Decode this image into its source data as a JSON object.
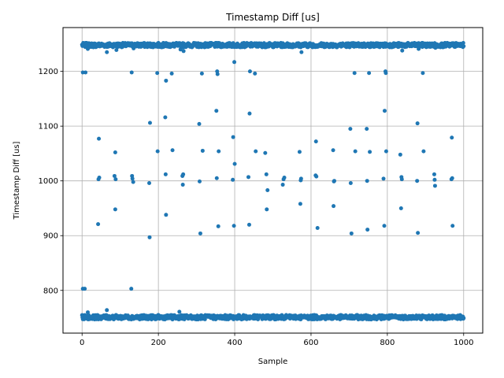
{
  "chart_data": {
    "type": "scatter",
    "title": "Timestamp Diff [us]",
    "xlabel": "Sample",
    "ylabel": "Timestamp Diff [us]",
    "xlim": [
      -50,
      1050
    ],
    "ylim": [
      722,
      1280
    ],
    "xticks": [
      0,
      200,
      400,
      600,
      800,
      1000
    ],
    "yticks": [
      800,
      900,
      1000,
      1100,
      1200
    ],
    "grid": true,
    "color": "#1f77b4",
    "bands": [
      {
        "x_start": 0,
        "x_end": 1000,
        "center": 1248,
        "spread": 4
      },
      {
        "x_start": 0,
        "x_end": 1000,
        "center": 751,
        "spread": 4
      }
    ],
    "points": [
      {
        "x": 2,
        "y": 803
      },
      {
        "x": 7,
        "y": 803
      },
      {
        "x": 2,
        "y": 1198
      },
      {
        "x": 9,
        "y": 1198
      },
      {
        "x": 15,
        "y": 760
      },
      {
        "x": 15,
        "y": 1241
      },
      {
        "x": 30,
        "y": 1244
      },
      {
        "x": 42,
        "y": 921
      },
      {
        "x": 43,
        "y": 1003
      },
      {
        "x": 45,
        "y": 1006
      },
      {
        "x": 44,
        "y": 1077
      },
      {
        "x": 65,
        "y": 1235
      },
      {
        "x": 65,
        "y": 764
      },
      {
        "x": 85,
        "y": 1009
      },
      {
        "x": 88,
        "y": 1003
      },
      {
        "x": 87,
        "y": 948
      },
      {
        "x": 87,
        "y": 1052
      },
      {
        "x": 90,
        "y": 1239
      },
      {
        "x": 130,
        "y": 1198
      },
      {
        "x": 131,
        "y": 1009
      },
      {
        "x": 132,
        "y": 1004
      },
      {
        "x": 134,
        "y": 998
      },
      {
        "x": 129,
        "y": 803
      },
      {
        "x": 135,
        "y": 1242
      },
      {
        "x": 176,
        "y": 996
      },
      {
        "x": 177,
        "y": 897
      },
      {
        "x": 178,
        "y": 1106
      },
      {
        "x": 197,
        "y": 1197
      },
      {
        "x": 198,
        "y": 1054
      },
      {
        "x": 218,
        "y": 1116
      },
      {
        "x": 219,
        "y": 1012
      },
      {
        "x": 220,
        "y": 938
      },
      {
        "x": 220,
        "y": 1183
      },
      {
        "x": 235,
        "y": 1196
      },
      {
        "x": 237,
        "y": 1056
      },
      {
        "x": 255,
        "y": 761
      },
      {
        "x": 258,
        "y": 1240
      },
      {
        "x": 263,
        "y": 1009
      },
      {
        "x": 264,
        "y": 993
      },
      {
        "x": 265,
        "y": 1012
      },
      {
        "x": 266,
        "y": 1237
      },
      {
        "x": 307,
        "y": 1104
      },
      {
        "x": 308,
        "y": 999
      },
      {
        "x": 310,
        "y": 904
      },
      {
        "x": 314,
        "y": 1196
      },
      {
        "x": 316,
        "y": 1055
      },
      {
        "x": 352,
        "y": 1128
      },
      {
        "x": 353,
        "y": 1005
      },
      {
        "x": 354,
        "y": 1200
      },
      {
        "x": 355,
        "y": 1195
      },
      {
        "x": 357,
        "y": 917
      },
      {
        "x": 358,
        "y": 1054
      },
      {
        "x": 395,
        "y": 1002
      },
      {
        "x": 396,
        "y": 1080
      },
      {
        "x": 398,
        "y": 918
      },
      {
        "x": 399,
        "y": 1217
      },
      {
        "x": 400,
        "y": 1031
      },
      {
        "x": 436,
        "y": 1007
      },
      {
        "x": 438,
        "y": 920
      },
      {
        "x": 439,
        "y": 1123
      },
      {
        "x": 440,
        "y": 1200
      },
      {
        "x": 453,
        "y": 1196
      },
      {
        "x": 455,
        "y": 1054
      },
      {
        "x": 480,
        "y": 1051
      },
      {
        "x": 483,
        "y": 1012
      },
      {
        "x": 484,
        "y": 948
      },
      {
        "x": 486,
        "y": 983
      },
      {
        "x": 526,
        "y": 993
      },
      {
        "x": 528,
        "y": 1003
      },
      {
        "x": 530,
        "y": 1006
      },
      {
        "x": 570,
        "y": 1053
      },
      {
        "x": 572,
        "y": 958
      },
      {
        "x": 573,
        "y": 1001
      },
      {
        "x": 574,
        "y": 1004
      },
      {
        "x": 575,
        "y": 1235
      },
      {
        "x": 612,
        "y": 1010
      },
      {
        "x": 613,
        "y": 1072
      },
      {
        "x": 614,
        "y": 1008
      },
      {
        "x": 617,
        "y": 914
      },
      {
        "x": 658,
        "y": 1056
      },
      {
        "x": 659,
        "y": 954
      },
      {
        "x": 660,
        "y": 999
      },
      {
        "x": 661,
        "y": 1000
      },
      {
        "x": 703,
        "y": 1095
      },
      {
        "x": 704,
        "y": 996
      },
      {
        "x": 706,
        "y": 904
      },
      {
        "x": 714,
        "y": 1197
      },
      {
        "x": 716,
        "y": 1054
      },
      {
        "x": 746,
        "y": 1095
      },
      {
        "x": 747,
        "y": 1000
      },
      {
        "x": 748,
        "y": 911
      },
      {
        "x": 752,
        "y": 1197
      },
      {
        "x": 754,
        "y": 1053
      },
      {
        "x": 790,
        "y": 1004
      },
      {
        "x": 792,
        "y": 918
      },
      {
        "x": 793,
        "y": 1128
      },
      {
        "x": 795,
        "y": 1200
      },
      {
        "x": 796,
        "y": 1197
      },
      {
        "x": 797,
        "y": 1054
      },
      {
        "x": 834,
        "y": 1048
      },
      {
        "x": 836,
        "y": 950
      },
      {
        "x": 837,
        "y": 1007
      },
      {
        "x": 838,
        "y": 1003
      },
      {
        "x": 839,
        "y": 1238
      },
      {
        "x": 878,
        "y": 1000
      },
      {
        "x": 879,
        "y": 1105
      },
      {
        "x": 880,
        "y": 905
      },
      {
        "x": 882,
        "y": 1241
      },
      {
        "x": 893,
        "y": 1197
      },
      {
        "x": 895,
        "y": 1054
      },
      {
        "x": 923,
        "y": 1012
      },
      {
        "x": 924,
        "y": 1002
      },
      {
        "x": 925,
        "y": 991
      },
      {
        "x": 926,
        "y": 1243
      },
      {
        "x": 968,
        "y": 1003
      },
      {
        "x": 969,
        "y": 1079
      },
      {
        "x": 970,
        "y": 1005
      },
      {
        "x": 971,
        "y": 918
      }
    ]
  }
}
